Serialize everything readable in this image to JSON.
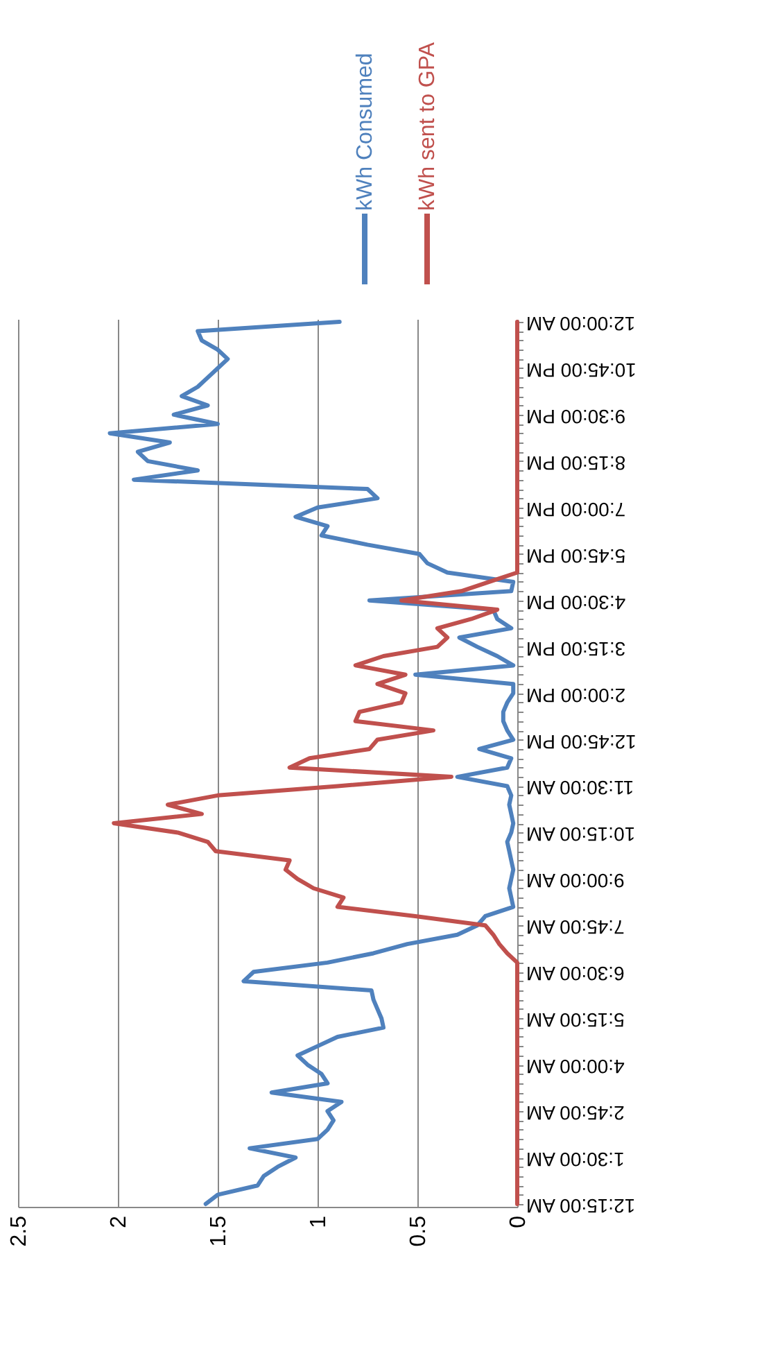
{
  "chart_data": {
    "type": "line",
    "categories": [
      "12:00:00 AM",
      null,
      null,
      null,
      null,
      "10:45:00 PM",
      null,
      null,
      null,
      null,
      "9:30:00 PM",
      null,
      null,
      null,
      null,
      "8:15:00 PM",
      null,
      null,
      null,
      null,
      "7:00:00 PM",
      null,
      null,
      null,
      null,
      "5:45:00 PM",
      null,
      null,
      null,
      null,
      "4:30:00 PM",
      null,
      null,
      null,
      null,
      "3:15:00 PM",
      null,
      null,
      null,
      null,
      "2:00:00 PM",
      null,
      null,
      null,
      null,
      "12:45:00 PM",
      null,
      null,
      null,
      null,
      "11:30:00 AM",
      null,
      null,
      null,
      null,
      "10:15:00 AM",
      null,
      null,
      null,
      null,
      "9:00:00 AM",
      null,
      null,
      null,
      null,
      "7:45:00 AM",
      null,
      null,
      null,
      null,
      "6:30:00 AM",
      null,
      null,
      null,
      null,
      "5:15:00 AM",
      null,
      null,
      null,
      null,
      "4:00:00 AM",
      null,
      null,
      null,
      null,
      "2:45:00 AM",
      null,
      null,
      null,
      null,
      "1:30:00 AM",
      null,
      null,
      null,
      null,
      "12:15:00 AM"
    ],
    "series": [
      {
        "name": "kWh Consumed",
        "color": "#4f81bd",
        "values": [
          0.89,
          1.6,
          1.58,
          1.5,
          1.45,
          1.5,
          1.55,
          1.6,
          1.68,
          1.55,
          1.72,
          1.5,
          2.04,
          1.74,
          1.9,
          1.85,
          1.6,
          1.92,
          0.75,
          0.7,
          1.0,
          1.11,
          0.95,
          0.98,
          0.75,
          0.49,
          0.45,
          0.35,
          0.02,
          0.03,
          0.74,
          0.12,
          0.1,
          0.03,
          0.29,
          0.2,
          0.1,
          0.02,
          0.51,
          0.02,
          0.02,
          0.05,
          0.07,
          0.07,
          0.05,
          0.02,
          0.19,
          0.03,
          0.05,
          0.3,
          0.05,
          0.03,
          0.04,
          0.03,
          0.02,
          0.03,
          0.05,
          0.04,
          0.03,
          0.02,
          0.03,
          0.04,
          0.03,
          0.02,
          0.16,
          0.2,
          0.3,
          0.55,
          0.72,
          0.95,
          1.32,
          1.37,
          0.73,
          0.72,
          0.7,
          0.68,
          0.67,
          0.9,
          1.0,
          1.1,
          1.05,
          0.98,
          0.95,
          1.23,
          0.88,
          0.95,
          0.92,
          0.95,
          1.0,
          1.34,
          1.11,
          1.2,
          1.27,
          1.3,
          1.5,
          1.56
        ]
      },
      {
        "name": "kWh sent to GPA",
        "color": "#c0504d",
        "values": [
          0,
          0,
          0,
          0,
          0,
          0,
          0,
          0,
          0,
          0,
          0,
          0,
          0,
          0,
          0,
          0,
          0,
          0,
          0,
          0,
          0,
          0,
          0,
          0,
          0,
          0,
          0,
          0,
          0.14,
          0.28,
          0.58,
          0.1,
          0.23,
          0.4,
          0.35,
          0.4,
          0.67,
          0.81,
          0.56,
          0.7,
          0.56,
          0.58,
          0.79,
          0.81,
          0.42,
          0.7,
          0.74,
          1.04,
          1.14,
          0.33,
          0.9,
          1.5,
          1.75,
          1.58,
          2.02,
          1.7,
          1.55,
          1.51,
          1.14,
          1.16,
          1.1,
          1.02,
          0.87,
          0.9,
          0.51,
          0.16,
          0.12,
          0.09,
          0.05,
          0,
          0,
          0,
          0,
          0,
          0,
          0,
          0,
          0,
          0,
          0,
          0,
          0,
          0,
          0,
          0,
          0,
          0,
          0,
          0,
          0,
          0,
          0,
          0,
          0,
          0,
          0
        ]
      }
    ],
    "orientation": "horizontal",
    "xlim": [
      2.5,
      0
    ],
    "xticks": [
      0,
      0.5,
      1,
      1.5,
      2,
      2.5
    ],
    "grid": "x",
    "legend": "top",
    "marker": "none",
    "line_style": "solid"
  }
}
